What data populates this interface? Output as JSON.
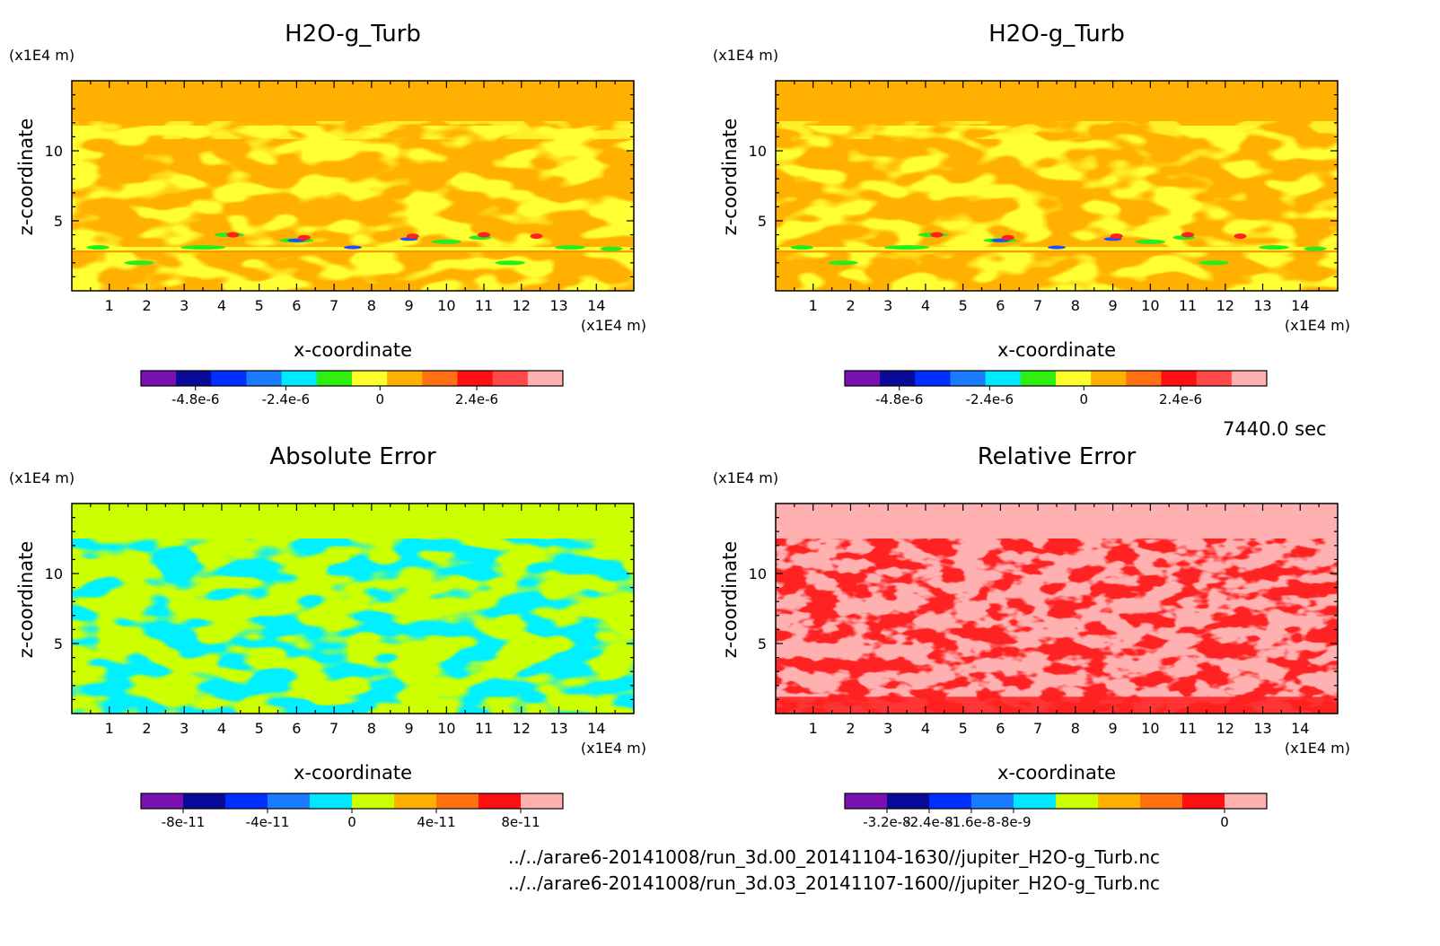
{
  "time_label": "7440.0 sec",
  "files": [
    "../../arare6-20141008/run_3d.00_20141104-1630//jupiter_H2O-g_Turb.nc",
    "../../arare6-20141008/run_3d.03_20141107-1600//jupiter_H2O-g_Turb.nc"
  ],
  "colors": {
    "orange": "#ffb000",
    "yellow": "#ffff32",
    "green": "#22ee22",
    "red": "#ff2020",
    "blue": "#1e50ff",
    "cyan": "#00f0ff",
    "lime": "#ccff00",
    "pink": "#ffb0b0"
  },
  "chart_data": [
    {
      "type": "heatmap",
      "title": "H2O-g_Turb",
      "xlabel": "x-coordinate",
      "ylabel": "z-coordinate",
      "x_unit": "(x1E4 m)",
      "y_unit": "(x1E4 m)",
      "xlim": [
        0,
        15
      ],
      "ylim": [
        0,
        15
      ],
      "xticks": [
        "1",
        "2",
        "3",
        "4",
        "5",
        "6",
        "7",
        "8",
        "9",
        "10",
        "11",
        "12",
        "13",
        "14"
      ],
      "yticks": [
        "5",
        "10"
      ],
      "colorbar": {
        "colors": [
          "#7a10b0",
          "#0a0a9a",
          "#0030ff",
          "#1a7cff",
          "#00e8ff",
          "#30ee10",
          "#ffff30",
          "#ffb000",
          "#ff7010",
          "#ff1010",
          "#ff4848",
          "#ffb0b0"
        ],
        "tick_labels": [
          "-4.8e-6",
          "-2.4e-6",
          "0",
          "2.4e-6"
        ]
      }
    },
    {
      "type": "heatmap",
      "title": "H2O-g_Turb",
      "xlabel": "x-coordinate",
      "ylabel": "z-coordinate",
      "x_unit": "(x1E4 m)",
      "y_unit": "(x1E4 m)",
      "xlim": [
        0,
        15
      ],
      "ylim": [
        0,
        15
      ],
      "xticks": [
        "1",
        "2",
        "3",
        "4",
        "5",
        "6",
        "7",
        "8",
        "9",
        "10",
        "11",
        "12",
        "13",
        "14"
      ],
      "yticks": [
        "5",
        "10"
      ],
      "colorbar": {
        "colors": [
          "#7a10b0",
          "#0a0a9a",
          "#0030ff",
          "#1a7cff",
          "#00e8ff",
          "#30ee10",
          "#ffff30",
          "#ffb000",
          "#ff7010",
          "#ff1010",
          "#ff4848",
          "#ffb0b0"
        ],
        "tick_labels": [
          "-4.8e-6",
          "-2.4e-6",
          "0",
          "2.4e-6"
        ]
      }
    },
    {
      "type": "heatmap",
      "title": "Absolute Error",
      "xlabel": "x-coordinate",
      "ylabel": "z-coordinate",
      "x_unit": "(x1E4 m)",
      "y_unit": "(x1E4 m)",
      "xlim": [
        0,
        15
      ],
      "ylim": [
        0,
        15
      ],
      "xticks": [
        "1",
        "2",
        "3",
        "4",
        "5",
        "6",
        "7",
        "8",
        "9",
        "10",
        "11",
        "12",
        "13",
        "14"
      ],
      "yticks": [
        "5",
        "10"
      ],
      "colorbar": {
        "colors": [
          "#7a10b0",
          "#0a0a9a",
          "#0030ff",
          "#1a7cff",
          "#00e8ff",
          "#ccff00",
          "#ffb000",
          "#ff7010",
          "#ff1010",
          "#ffb0b0"
        ],
        "tick_labels": [
          "-8e-11",
          "-4e-11",
          "0",
          "4e-11",
          "8e-11"
        ]
      }
    },
    {
      "type": "heatmap",
      "title": "Relative Error",
      "xlabel": "x-coordinate",
      "ylabel": "z-coordinate",
      "x_unit": "(x1E4 m)",
      "y_unit": "(x1E4 m)",
      "xlim": [
        0,
        15
      ],
      "ylim": [
        0,
        15
      ],
      "xticks": [
        "1",
        "2",
        "3",
        "4",
        "5",
        "6",
        "7",
        "8",
        "9",
        "10",
        "11",
        "12",
        "13",
        "14"
      ],
      "yticks": [
        "5",
        "10"
      ],
      "colorbar": {
        "colors": [
          "#7a10b0",
          "#0a0a9a",
          "#0030ff",
          "#1a7cff",
          "#00e8ff",
          "#ccff00",
          "#ffb000",
          "#ff7010",
          "#ff1010",
          "#ffb0b0"
        ],
        "tick_labels": [
          "-3.2e-8",
          "-2.4e-8",
          "-1.6e-8",
          "-8e-9",
          "0"
        ]
      }
    }
  ]
}
